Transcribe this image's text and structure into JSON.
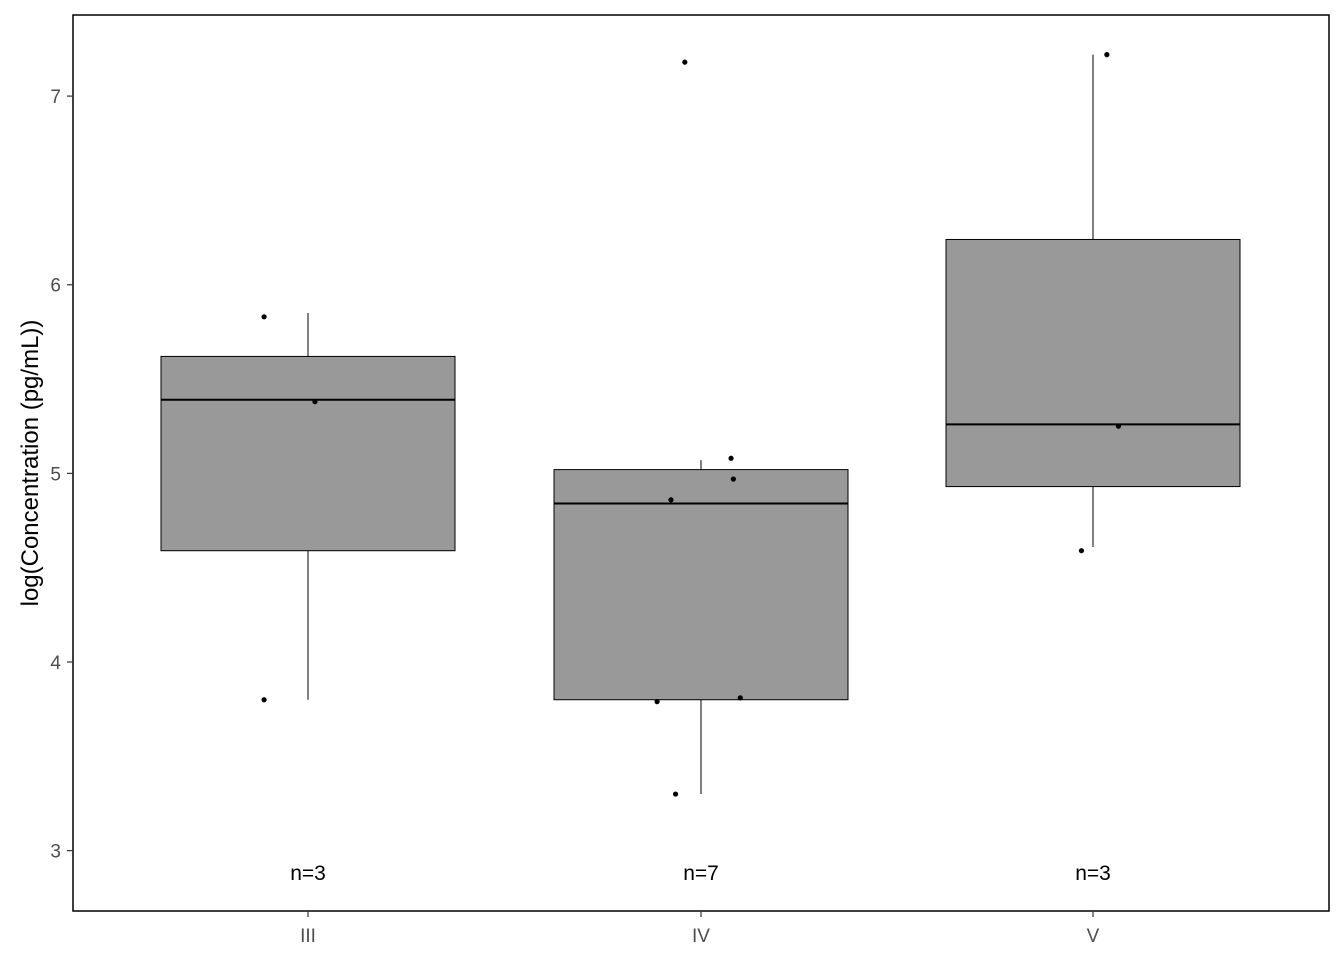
{
  "chart_data": {
    "type": "box",
    "title": "",
    "xlabel": "",
    "ylabel": "log(Concentration (pg/mL))",
    "ylim": [
      2.68,
      7.43
    ],
    "yticks": [
      3,
      4,
      5,
      6,
      7
    ],
    "grid": false,
    "legend": "none",
    "box_fill": "#999999",
    "categories": [
      "III",
      "IV",
      "V"
    ],
    "groups": [
      {
        "category": "III",
        "count_label": "n=3",
        "whisker_low": 3.8,
        "q1": 4.59,
        "median": 5.39,
        "q3": 5.62,
        "whisker_high": 5.85,
        "points": [
          {
            "x_offset": -0.19,
            "y": 5.83
          },
          {
            "x_offset": 0.03,
            "y": 5.38
          },
          {
            "x_offset": -0.19,
            "y": 3.8
          }
        ]
      },
      {
        "category": "IV",
        "count_label": "n=7",
        "whisker_low": 3.3,
        "q1": 3.8,
        "median": 4.84,
        "q3": 5.02,
        "whisker_high": 5.07,
        "points": [
          {
            "x_offset": -0.07,
            "y": 7.18
          },
          {
            "x_offset": 0.13,
            "y": 5.08
          },
          {
            "x_offset": 0.14,
            "y": 4.97
          },
          {
            "x_offset": -0.13,
            "y": 4.86
          },
          {
            "x_offset": 0.17,
            "y": 3.81
          },
          {
            "x_offset": -0.19,
            "y": 3.79
          },
          {
            "x_offset": -0.11,
            "y": 3.3
          }
        ]
      },
      {
        "category": "V",
        "count_label": "n=3",
        "whisker_low": 4.61,
        "q1": 4.93,
        "median": 5.26,
        "q3": 6.24,
        "whisker_high": 7.22,
        "points": [
          {
            "x_offset": 0.06,
            "y": 7.22
          },
          {
            "x_offset": 0.11,
            "y": 5.25
          },
          {
            "x_offset": -0.05,
            "y": 4.59
          }
        ]
      }
    ]
  }
}
